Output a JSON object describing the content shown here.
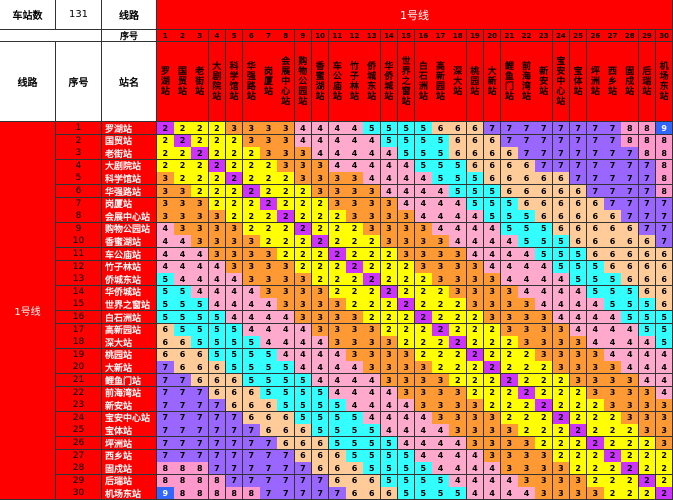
{
  "header": {
    "station_count_label": "车站数",
    "station_count_value": "131",
    "line_label": "线路",
    "seq_label": "序号",
    "line_banner": "1号线",
    "line_col_label": "线路",
    "seq_col_label": "序号",
    "name_col_label": "站名"
  },
  "line_name": "1号线",
  "stations": [
    "罗湖站",
    "国贸站",
    "老街站",
    "大剧院站",
    "科学馆站",
    "华强路站",
    "岗厦站",
    "会展中心站",
    "购物公园站",
    "香蜜湖站",
    "车公庙站",
    "竹子林站",
    "侨城东站",
    "华侨城站",
    "世界之窗站",
    "白石洲站",
    "高新园站",
    "深大站",
    "桃园站",
    "大新站",
    "鲤鱼门站",
    "前海湾站",
    "新安站",
    "宝安中心站",
    "宝体站",
    "坪洲站",
    "西乡站",
    "固戍站",
    "后瑞站",
    "机场东站"
  ],
  "column_names": [
    "罗湖站",
    "国贸站",
    "老街站",
    "大剧院站",
    "科学馆站",
    "华强路站",
    "岗厦站",
    "会展中心站",
    "购物公园站",
    "香蜜湖站",
    "车公庙站",
    "竹子林站",
    "侨城东站",
    "华侨城站",
    "世界之窗站",
    "白石洲站",
    "高新园站",
    "深大站",
    "桃园站",
    "大新站",
    "鲤鱼门站",
    "前海湾站",
    "新安站",
    "宝安中心站",
    "宝体站",
    "坪洲站",
    "西乡站",
    "固戍站",
    "后瑞站",
    "机场东站"
  ],
  "fares": [
    [
      2,
      2,
      2,
      2,
      3,
      3,
      3,
      3,
      4,
      4,
      4,
      4,
      5,
      5,
      5,
      5,
      6,
      6,
      6,
      7,
      7,
      7,
      7,
      7,
      7,
      7,
      7,
      8,
      8,
      9
    ],
    [
      2,
      2,
      2,
      2,
      2,
      3,
      3,
      3,
      4,
      4,
      4,
      4,
      4,
      5,
      5,
      5,
      5,
      6,
      6,
      6,
      7,
      7,
      7,
      7,
      7,
      7,
      7,
      8,
      8,
      8
    ],
    [
      2,
      2,
      2,
      2,
      2,
      2,
      3,
      3,
      3,
      4,
      4,
      4,
      4,
      4,
      5,
      5,
      5,
      6,
      6,
      6,
      6,
      7,
      7,
      7,
      7,
      7,
      7,
      7,
      8,
      8
    ],
    [
      2,
      2,
      2,
      2,
      2,
      2,
      2,
      3,
      3,
      3,
      4,
      4,
      4,
      4,
      4,
      5,
      5,
      5,
      6,
      6,
      6,
      6,
      7,
      7,
      7,
      7,
      7,
      7,
      7,
      8
    ],
    [
      3,
      2,
      2,
      2,
      2,
      2,
      2,
      2,
      3,
      3,
      3,
      3,
      4,
      4,
      4,
      4,
      5,
      5,
      5,
      6,
      6,
      6,
      6,
      6,
      7,
      7,
      7,
      7,
      7,
      8
    ],
    [
      3,
      3,
      2,
      2,
      2,
      2,
      2,
      2,
      2,
      3,
      3,
      3,
      3,
      4,
      4,
      4,
      4,
      5,
      5,
      5,
      6,
      6,
      6,
      6,
      6,
      7,
      7,
      7,
      7,
      8
    ],
    [
      3,
      3,
      3,
      2,
      2,
      2,
      2,
      2,
      2,
      2,
      3,
      3,
      3,
      3,
      4,
      4,
      4,
      4,
      5,
      5,
      5,
      6,
      6,
      6,
      6,
      6,
      7,
      7,
      7,
      7
    ],
    [
      3,
      3,
      3,
      3,
      2,
      2,
      2,
      2,
      2,
      2,
      2,
      3,
      3,
      3,
      3,
      4,
      4,
      4,
      4,
      5,
      5,
      5,
      6,
      6,
      6,
      6,
      6,
      7,
      7,
      7
    ],
    [
      4,
      3,
      3,
      3,
      3,
      2,
      2,
      2,
      2,
      2,
      2,
      2,
      3,
      3,
      3,
      3,
      4,
      4,
      4,
      4,
      5,
      5,
      5,
      6,
      6,
      6,
      6,
      6,
      7,
      7
    ],
    [
      4,
      4,
      3,
      3,
      3,
      3,
      2,
      2,
      2,
      2,
      2,
      2,
      2,
      3,
      3,
      3,
      3,
      4,
      4,
      4,
      4,
      5,
      5,
      5,
      6,
      6,
      6,
      6,
      6,
      7
    ],
    [
      4,
      4,
      4,
      3,
      3,
      3,
      3,
      2,
      2,
      2,
      2,
      2,
      2,
      2,
      3,
      3,
      3,
      3,
      4,
      4,
      4,
      4,
      5,
      5,
      5,
      6,
      6,
      6,
      6,
      6
    ],
    [
      4,
      4,
      4,
      4,
      3,
      3,
      3,
      3,
      2,
      2,
      2,
      2,
      2,
      2,
      2,
      3,
      3,
      3,
      3,
      4,
      4,
      4,
      4,
      5,
      5,
      5,
      6,
      6,
      6,
      6
    ],
    [
      5,
      4,
      4,
      4,
      4,
      3,
      3,
      3,
      3,
      2,
      2,
      2,
      2,
      2,
      2,
      2,
      3,
      3,
      3,
      3,
      4,
      4,
      4,
      4,
      5,
      5,
      5,
      6,
      6,
      6
    ],
    [
      5,
      5,
      4,
      4,
      4,
      4,
      3,
      3,
      3,
      3,
      2,
      2,
      2,
      2,
      2,
      2,
      2,
      3,
      3,
      3,
      3,
      4,
      4,
      4,
      4,
      5,
      5,
      5,
      6,
      6
    ],
    [
      5,
      5,
      5,
      4,
      4,
      4,
      4,
      3,
      3,
      3,
      3,
      2,
      2,
      2,
      2,
      2,
      2,
      2,
      3,
      3,
      3,
      3,
      4,
      4,
      4,
      4,
      5,
      5,
      5,
      6
    ],
    [
      5,
      5,
      5,
      5,
      4,
      4,
      4,
      4,
      3,
      3,
      3,
      3,
      2,
      2,
      2,
      2,
      2,
      2,
      2,
      3,
      3,
      3,
      3,
      4,
      4,
      4,
      4,
      5,
      5,
      5
    ],
    [
      6,
      5,
      5,
      5,
      5,
      4,
      4,
      4,
      4,
      3,
      3,
      3,
      3,
      2,
      2,
      2,
      2,
      2,
      2,
      2,
      3,
      3,
      3,
      3,
      4,
      4,
      4,
      4,
      5,
      5
    ],
    [
      6,
      6,
      5,
      5,
      5,
      5,
      4,
      4,
      4,
      4,
      3,
      3,
      3,
      3,
      2,
      2,
      2,
      2,
      2,
      2,
      2,
      3,
      3,
      3,
      3,
      4,
      4,
      4,
      4,
      5
    ],
    [
      6,
      6,
      6,
      5,
      5,
      5,
      5,
      4,
      4,
      4,
      4,
      3,
      3,
      3,
      3,
      2,
      2,
      2,
      2,
      2,
      2,
      2,
      3,
      3,
      3,
      3,
      4,
      4,
      4,
      4
    ],
    [
      7,
      6,
      6,
      6,
      5,
      5,
      5,
      5,
      4,
      4,
      4,
      4,
      3,
      3,
      3,
      3,
      2,
      2,
      2,
      2,
      2,
      2,
      2,
      3,
      3,
      3,
      3,
      4,
      4,
      4
    ],
    [
      7,
      7,
      6,
      6,
      6,
      5,
      5,
      5,
      5,
      4,
      4,
      4,
      4,
      3,
      3,
      3,
      3,
      2,
      2,
      2,
      2,
      2,
      2,
      2,
      3,
      3,
      3,
      3,
      4,
      4
    ],
    [
      7,
      7,
      7,
      6,
      6,
      6,
      5,
      5,
      5,
      5,
      4,
      4,
      4,
      4,
      3,
      3,
      3,
      3,
      2,
      2,
      2,
      2,
      2,
      2,
      2,
      3,
      3,
      3,
      3,
      4
    ],
    [
      7,
      7,
      7,
      7,
      6,
      6,
      6,
      5,
      5,
      5,
      5,
      4,
      4,
      4,
      4,
      3,
      3,
      3,
      3,
      2,
      2,
      2,
      2,
      2,
      2,
      2,
      3,
      3,
      3,
      3
    ],
    [
      7,
      7,
      7,
      7,
      7,
      6,
      6,
      6,
      5,
      5,
      5,
      5,
      4,
      4,
      4,
      4,
      3,
      3,
      3,
      3,
      2,
      2,
      2,
      2,
      2,
      2,
      2,
      3,
      3,
      3
    ],
    [
      7,
      7,
      7,
      7,
      7,
      7,
      6,
      6,
      6,
      5,
      5,
      5,
      5,
      4,
      4,
      4,
      4,
      3,
      3,
      3,
      3,
      2,
      2,
      2,
      2,
      2,
      2,
      2,
      3,
      3
    ],
    [
      7,
      7,
      7,
      7,
      7,
      7,
      7,
      6,
      6,
      6,
      5,
      5,
      5,
      5,
      4,
      4,
      4,
      4,
      3,
      3,
      3,
      3,
      2,
      2,
      2,
      2,
      2,
      2,
      2,
      3
    ],
    [
      7,
      7,
      7,
      7,
      7,
      7,
      7,
      7,
      6,
      6,
      6,
      5,
      5,
      5,
      5,
      4,
      4,
      4,
      4,
      3,
      3,
      3,
      3,
      2,
      2,
      2,
      2,
      2,
      2,
      2
    ],
    [
      8,
      8,
      8,
      7,
      7,
      7,
      7,
      7,
      7,
      6,
      6,
      6,
      5,
      5,
      5,
      5,
      4,
      4,
      4,
      4,
      3,
      3,
      3,
      3,
      2,
      2,
      2,
      2,
      2,
      2
    ],
    [
      8,
      8,
      8,
      8,
      7,
      7,
      7,
      7,
      7,
      7,
      6,
      6,
      6,
      5,
      5,
      5,
      5,
      4,
      4,
      4,
      4,
      3,
      3,
      3,
      3,
      2,
      2,
      2,
      2,
      2
    ],
    [
      9,
      8,
      8,
      8,
      8,
      8,
      7,
      7,
      7,
      7,
      7,
      6,
      6,
      6,
      5,
      5,
      5,
      5,
      4,
      4,
      4,
      4,
      3,
      3,
      3,
      3,
      2,
      2,
      2,
      2
    ]
  ],
  "fare_colors": {
    "2": "#ffff00",
    "3": "#ff9933",
    "4": "#ffaacc",
    "5": "#33ffff",
    "6": "#ffcc99",
    "7": "#9966ff",
    "8": "#ff99cc",
    "9": "#3366ff"
  },
  "diag_color": "#cc33ff",
  "colors": {
    "banner_red": "#ff0000",
    "grid_line": "#333333"
  }
}
